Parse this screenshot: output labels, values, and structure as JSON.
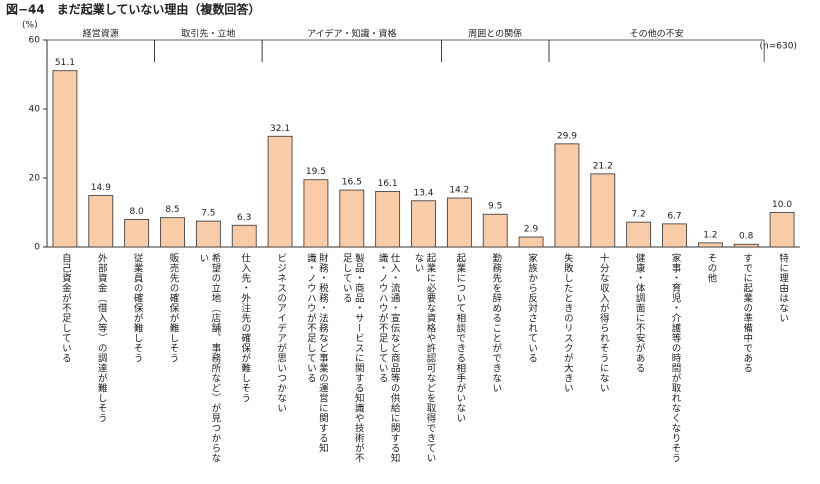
{
  "chart_data": {
    "type": "bar",
    "title": "図−44　まだ起業していない理由（複数回答）",
    "y_unit": "(%)",
    "note": "(n=630)",
    "ylim": [
      0,
      60
    ],
    "yticks": [
      0,
      20,
      40,
      60
    ],
    "color": "#f9cba6",
    "edge_color": "#333333",
    "groups": [
      {
        "name": "経営資源",
        "categories": [
          "自己資金が不足している",
          "外部資金（借入等）の調達が難しそう",
          "従業員の確保が難しそう"
        ],
        "values": [
          51.1,
          14.9,
          8.0
        ],
        "value_labels": [
          "51.1",
          "14.9",
          "8.0"
        ]
      },
      {
        "name": "取引先・立地",
        "categories": [
          "販売先の確保が難しそう",
          "希望の立地（店舗、事務所など）が見つからない",
          "仕入先・外注先の確保が難しそう"
        ],
        "values": [
          8.5,
          7.5,
          6.3
        ],
        "value_labels": [
          "8.5",
          "7.5",
          "6.3"
        ]
      },
      {
        "name": "アイデア・知識・資格",
        "categories": [
          "ビジネスのアイデアが思いつかない",
          "財務・税務・法務など事業の運営に関する知識・ノウハウが不足している",
          "製品・商品・サービスに関する知識や技術が不足している",
          "仕入・流通・宣伝など商品等の供給に関する知識・ノウハウが不足している",
          "起業に必要な資格や許認可などを取得できていない"
        ],
        "values": [
          32.1,
          19.5,
          16.5,
          16.1,
          13.4
        ],
        "value_labels": [
          "32.1",
          "19.5",
          "16.5",
          "16.1",
          "13.4"
        ]
      },
      {
        "name": "周囲との関係",
        "categories": [
          "起業について相談できる相手がいない",
          "勤務先を辞めることができない",
          "家族から反対されている"
        ],
        "values": [
          14.2,
          9.5,
          2.9
        ],
        "value_labels": [
          "14.2",
          "9.5",
          "2.9"
        ]
      },
      {
        "name": "その他の不安",
        "categories": [
          "失敗したときのリスクが大きい",
          "十分な収入が得られそうにない",
          "健康・体調面に不安がある",
          "家事・育児・介護等の時間が取れなくなりそう",
          "その他",
          "すでに起業の準備中である"
        ],
        "values": [
          29.9,
          21.2,
          7.2,
          6.7,
          1.2,
          0.8
        ],
        "value_labels": [
          "29.9",
          "21.2",
          "7.2",
          "6.7",
          "1.2",
          "0.8"
        ]
      },
      {
        "categories": [
          "特に理由はない"
        ],
        "values": [
          10.0
        ],
        "value_labels": [
          "10.0"
        ]
      }
    ]
  }
}
